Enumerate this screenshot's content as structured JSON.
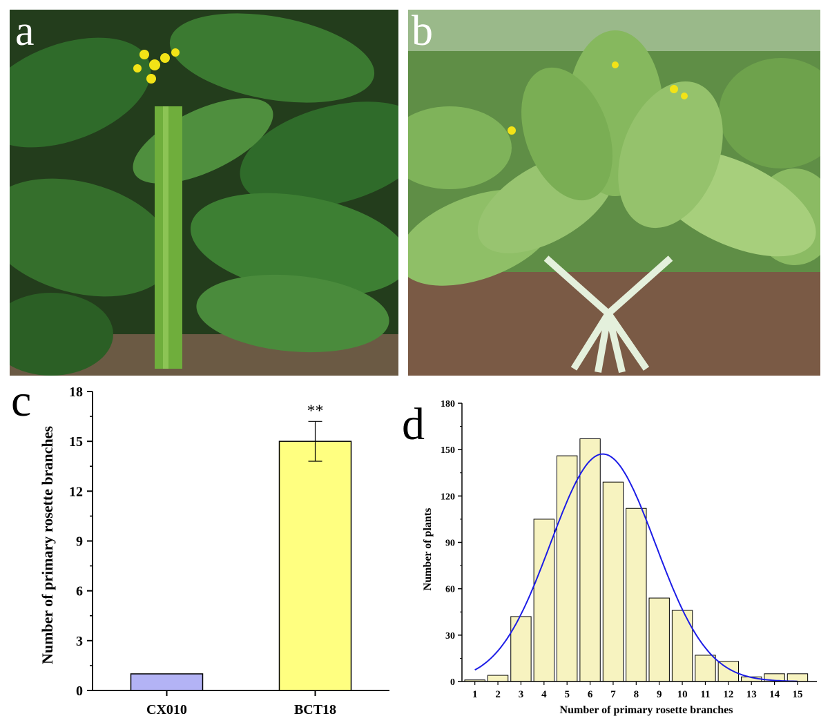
{
  "panels": {
    "a": "a",
    "b": "b",
    "c": "c",
    "d": "d"
  },
  "photos": {
    "a": {
      "subject": "bolting plant with tall central stem and yellow flowers",
      "colors": {
        "leaf": "#2f6b2a",
        "leaf_light": "#4f8f3e",
        "stem": "#6fae3c",
        "flower": "#f2e317",
        "soil": "#6b5a44"
      }
    },
    "b": {
      "subject": "rosette plant with many primary branches and yellow flowers",
      "colors": {
        "leaf": "#7fb35a",
        "leaf_light": "#a7cf7c",
        "stem": "#d8ead0",
        "flower": "#f2e317",
        "soil": "#7a5a45"
      }
    }
  },
  "chart_data": [
    {
      "type": "bar",
      "categories": [
        "CX010",
        "BCT18"
      ],
      "values": [
        1,
        15
      ],
      "errors": [
        0,
        1.2
      ],
      "annotations": [
        "",
        "**"
      ],
      "colors": [
        "#b3b3f5",
        "#ffff80"
      ],
      "xlabel": "",
      "ylabel": "Number of primary rosette branches",
      "ylim": [
        0,
        18
      ],
      "yticks": [
        "0",
        "3",
        "6",
        "9",
        "12",
        "15",
        "18"
      ],
      "grid": false
    },
    {
      "type": "bar",
      "categories": [
        "1",
        "2",
        "3",
        "4",
        "5",
        "6",
        "7",
        "8",
        "9",
        "10",
        "11",
        "12",
        "13",
        "14",
        "15"
      ],
      "values": [
        1,
        4,
        42,
        105,
        146,
        157,
        129,
        112,
        54,
        46,
        17,
        13,
        3,
        5,
        5
      ],
      "bar_color": "#f7f3c0",
      "fit_curve": {
        "type": "normal",
        "color": "#1c1ce6"
      },
      "xlabel": "Number of primary rosette branches",
      "ylabel": "Number of plants",
      "ylim": [
        0,
        180
      ],
      "yticks": [
        "0",
        "30",
        "60",
        "90",
        "120",
        "150",
        "180"
      ],
      "grid": false
    }
  ]
}
